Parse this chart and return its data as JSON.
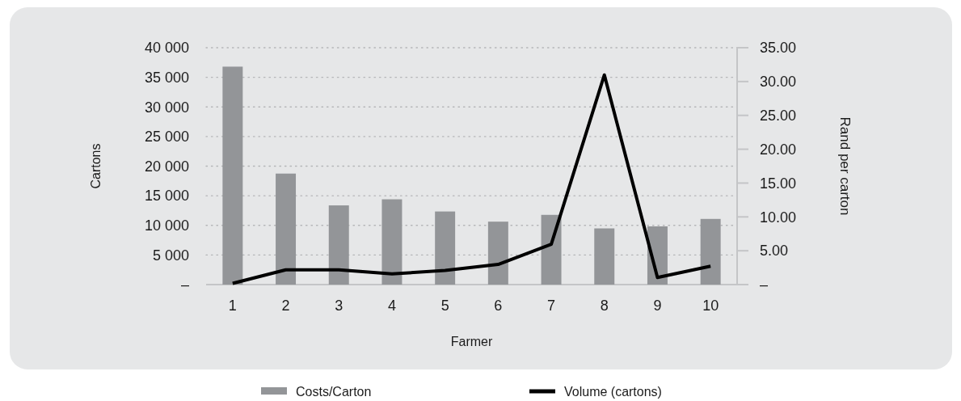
{
  "chart_data": {
    "type": "bar",
    "xlabel": "Farmer",
    "ylabel": "Cartons",
    "y2label": "Rand per carton",
    "categories": [
      "1",
      "2",
      "3",
      "4",
      "5",
      "6",
      "7",
      "8",
      "9",
      "10"
    ],
    "series": [
      {
        "name": "Costs/Carton",
        "axis": "y2",
        "color": "#939598",
        "values": [
          32.2,
          16.4,
          11.7,
          12.6,
          10.8,
          9.3,
          10.3,
          8.3,
          8.6,
          9.7
        ]
      },
      {
        "name": "Volume (cartons)",
        "type": "line",
        "color": "#000000",
        "values": [
          200,
          2500,
          2500,
          1800,
          2400,
          3400,
          6800,
          35400,
          1200,
          3100
        ]
      }
    ],
    "ylim": [
      0,
      40000
    ],
    "yticks": [
      {
        "value": 0,
        "label": "–"
      },
      {
        "value": 5000,
        "label": "5 000"
      },
      {
        "value": 10000,
        "label": "10 000"
      },
      {
        "value": 15000,
        "label": "15 000"
      },
      {
        "value": 20000,
        "label": "20 000"
      },
      {
        "value": 25000,
        "label": "25 000"
      },
      {
        "value": 30000,
        "label": "30 000"
      },
      {
        "value": 35000,
        "label": "35 000"
      },
      {
        "value": 40000,
        "label": "40 000"
      }
    ],
    "y2lim": [
      0,
      35
    ],
    "y2ticks": [
      {
        "value": 0,
        "label": "–"
      },
      {
        "value": 5,
        "label": "5.00"
      },
      {
        "value": 10,
        "label": "10.00"
      },
      {
        "value": 15,
        "label": "15.00"
      },
      {
        "value": 20,
        "label": "20.00"
      },
      {
        "value": 25,
        "label": "25.00"
      },
      {
        "value": 30,
        "label": "30.00"
      },
      {
        "value": 35,
        "label": "35.00"
      }
    ],
    "grid": "y",
    "legend": "bottom",
    "marker": "none",
    "line_style": "solid"
  }
}
